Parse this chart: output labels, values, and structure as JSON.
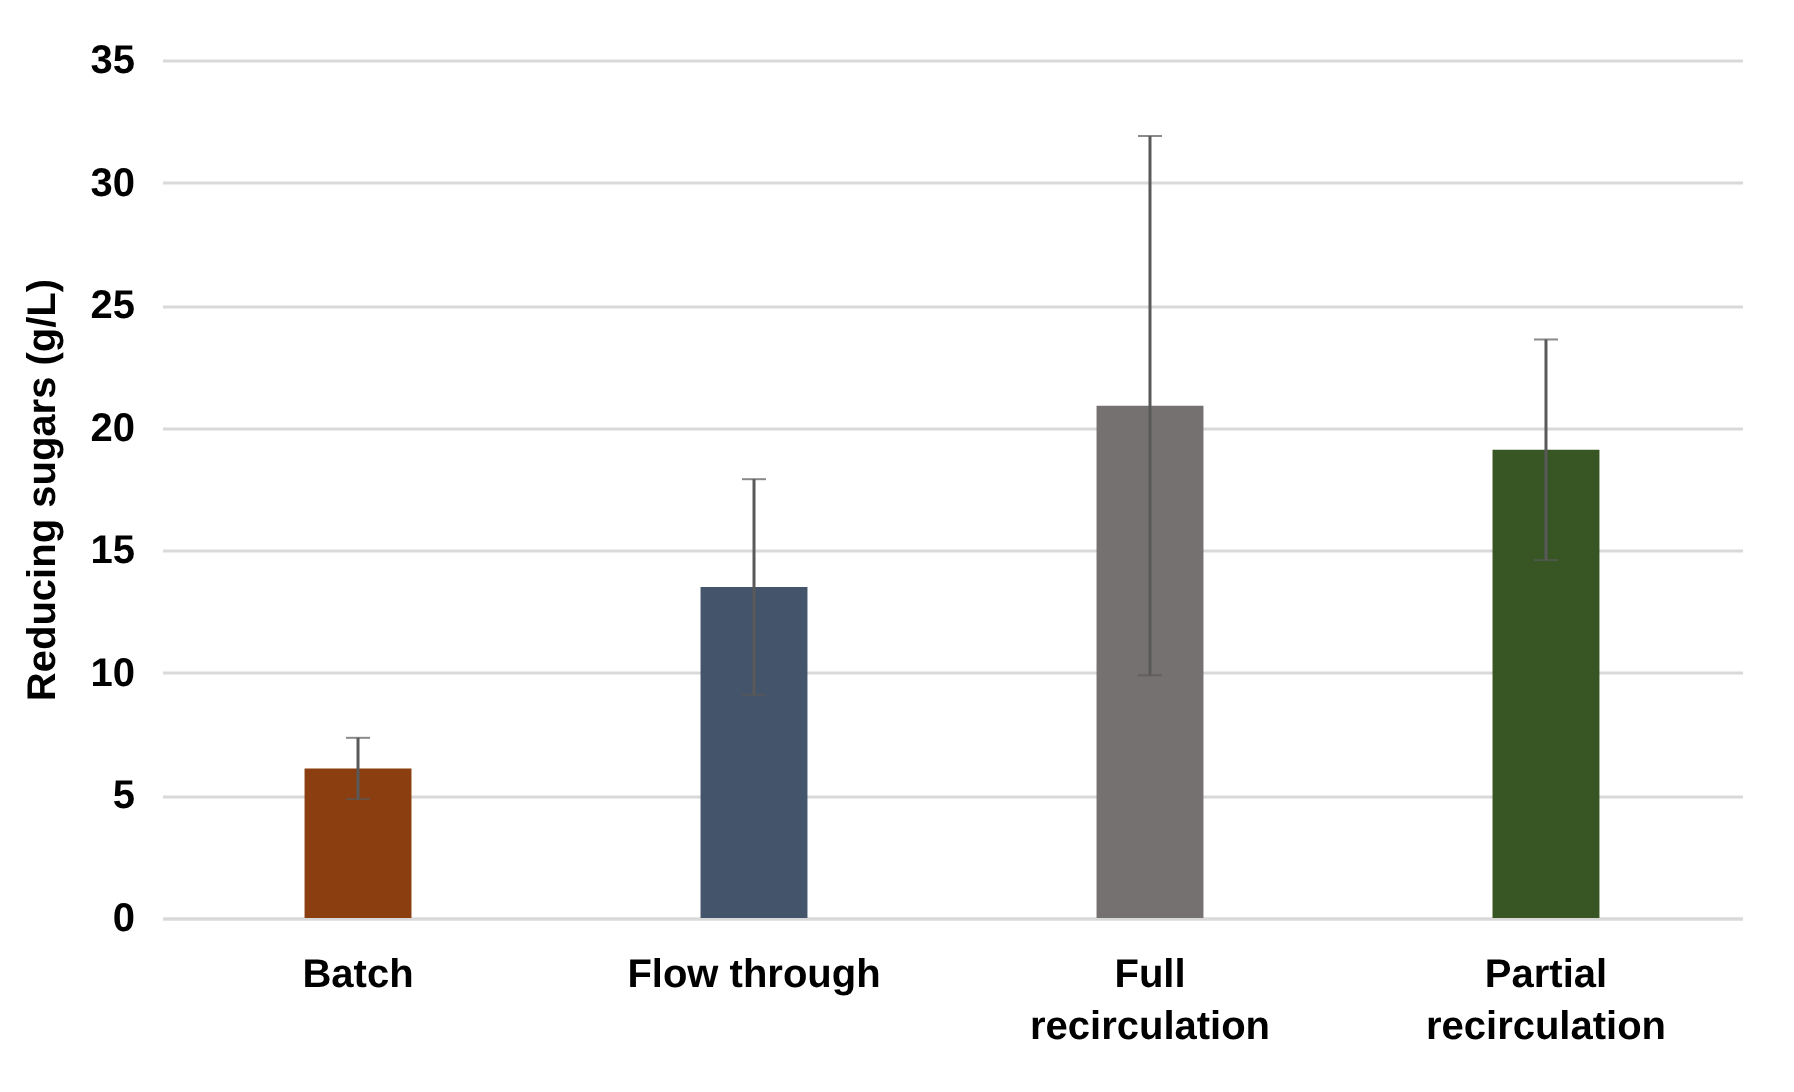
{
  "chart_data": {
    "type": "bar",
    "ylabel": "Reducing sugars (g/L)",
    "categories": [
      "Batch",
      "Flow through",
      "Full recirculation",
      "Partial recirculation"
    ],
    "values": [
      6.1,
      13.5,
      20.9,
      19.1
    ],
    "colors": [
      "#8b3e0f",
      "#44546a",
      "#767171",
      "#375623"
    ],
    "errors": [
      1.25,
      4.4,
      11,
      4.5
    ],
    "ylim": [
      0,
      35
    ],
    "yticks": [
      0,
      5,
      10,
      15,
      20,
      25,
      30,
      35
    ],
    "grid": "y"
  }
}
